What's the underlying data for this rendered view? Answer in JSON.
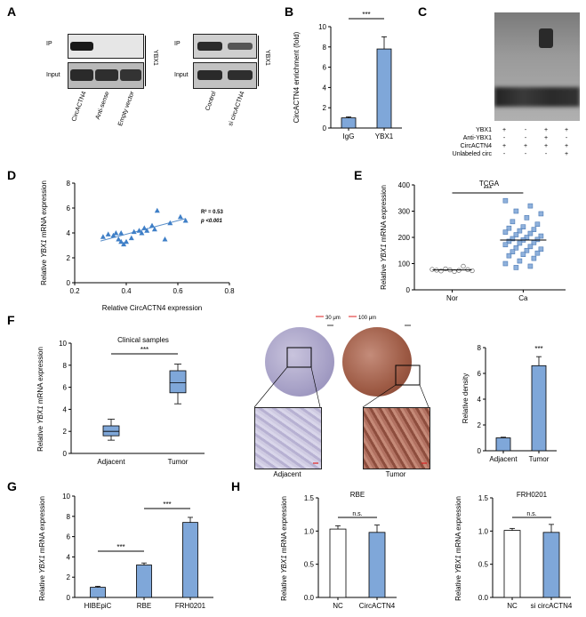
{
  "panels": {
    "A": {
      "label": "A",
      "blot1": {
        "row1": "IP",
        "row2": "Input",
        "side": "YBX1",
        "lanes": [
          "CircACTN4",
          "Anti-sense",
          "Empty vector"
        ]
      },
      "blot2": {
        "row1": "IP",
        "row2": "Input",
        "side": "YBX1",
        "lanes": [
          "Control",
          "si circACTN4"
        ]
      }
    },
    "B": {
      "label": "B",
      "ylabel": "CircACTN4 enrichment (fold)",
      "sig": "***",
      "colors": {
        "IgG": "#7fa7d9",
        "YBX1": "#7fa7d9"
      }
    },
    "C": {
      "label": "C",
      "rows": [
        "YBX1",
        "Anti-YBX1",
        "CircACTN4",
        "Unlabeled circ"
      ],
      "signs": [
        [
          "+",
          "-",
          "+",
          "+"
        ],
        [
          "-",
          "-",
          "+",
          "-"
        ],
        [
          "+",
          "+",
          "+",
          "+"
        ],
        [
          "-",
          "-",
          "-",
          "+"
        ]
      ]
    },
    "D": {
      "label": "D",
      "ylabel_pre": "Relative ",
      "ylabel_it": "YBX1",
      "ylabel_post": " mRNA expression",
      "xlabel": "Relative CircACTN4 expression",
      "r2": "R² = 0.53",
      "p": "p <0.001"
    },
    "E": {
      "label": "E",
      "title": "TCGA",
      "sig": "***",
      "ylabel_pre": "Relative ",
      "ylabel_it": "YBX1",
      "ylabel_post": " mRNA expression"
    },
    "F": {
      "label": "F",
      "title": "Clinical samples",
      "sig": "***",
      "ylabel_pre": "Relative ",
      "ylabel_it": "YBX1",
      "ylabel_post": " mRNA expression",
      "scale1": "30 μm",
      "scale2": "100 μm",
      "ihc_labels": [
        "Adjacent",
        "Tumor"
      ],
      "density_ylabel": "Relative density",
      "density_sig": "***"
    },
    "G": {
      "label": "G",
      "sig1": "***",
      "sig2": "***",
      "ylabel_pre": "Relative ",
      "ylabel_it": "YBX1",
      "ylabel_post": " mRNA expression"
    },
    "H": {
      "label": "H",
      "title1": "RBE",
      "title2": "FRH0201",
      "sig": "n.s.",
      "ylabel_pre": "Relative ",
      "ylabel_it": "YBX1",
      "ylabel_post": " mRNA expression"
    }
  },
  "chart_data": [
    {
      "id": "B",
      "type": "bar",
      "categories": [
        "IgG",
        "YBX1"
      ],
      "values": [
        1.0,
        7.8
      ],
      "errors": [
        0.1,
        1.2
      ],
      "ylim": [
        0,
        10
      ],
      "yticks": [
        0,
        2,
        4,
        6,
        8,
        10
      ],
      "ylabel": "CircACTN4 enrichment (fold)"
    },
    {
      "id": "D",
      "type": "scatter",
      "x": [
        0.31,
        0.33,
        0.35,
        0.36,
        0.37,
        0.38,
        0.38,
        0.39,
        0.4,
        0.42,
        0.43,
        0.45,
        0.46,
        0.47,
        0.48,
        0.5,
        0.51,
        0.52,
        0.55,
        0.57,
        0.61,
        0.63
      ],
      "y": [
        3.7,
        3.9,
        3.8,
        4.0,
        3.5,
        4.0,
        3.3,
        3.1,
        3.3,
        3.6,
        4.1,
        4.2,
        4.0,
        4.4,
        4.2,
        4.6,
        4.3,
        5.8,
        3.5,
        4.8,
        5.3,
        5.0
      ],
      "fit": {
        "x": [
          0.3,
          0.63
        ],
        "y": [
          3.35,
          5.15
        ]
      },
      "xlim": [
        0.2,
        0.8
      ],
      "ylim": [
        0,
        8
      ],
      "xticks": [
        0.2,
        0.4,
        0.6,
        0.8
      ],
      "yticks": [
        0,
        2,
        4,
        6,
        8
      ],
      "xlabel": "Relative CircACTN4 expression",
      "ylabel": "Relative YBX1 mRNA expression"
    },
    {
      "id": "E",
      "type": "scatter",
      "categories": [
        "Nor",
        "Ca"
      ],
      "nor": [
        78,
        75,
        72,
        80,
        76,
        70,
        74,
        90,
        77,
        73
      ],
      "ca": [
        340,
        320,
        300,
        290,
        275,
        260,
        250,
        240,
        235,
        230,
        225,
        220,
        215,
        210,
        205,
        200,
        195,
        192,
        190,
        185,
        180,
        178,
        172,
        165,
        160,
        155,
        150,
        145,
        140,
        135,
        130,
        120,
        110,
        100,
        90,
        85
      ],
      "means": [
        76,
        190
      ],
      "ylim": [
        0,
        400
      ],
      "yticks": [
        0,
        100,
        200,
        300,
        400
      ],
      "ylabel": "Relative YBX1 mRNA expression"
    },
    {
      "id": "F1",
      "type": "box",
      "categories": [
        "Adjacent",
        "Tumor"
      ],
      "boxes": [
        {
          "min": 1.2,
          "q1": 1.6,
          "median": 2.0,
          "q3": 2.5,
          "max": 3.1
        },
        {
          "min": 4.5,
          "q1": 5.5,
          "median": 6.4,
          "q3": 7.5,
          "max": 8.1
        }
      ],
      "ylim": [
        0,
        10
      ],
      "yticks": [
        0,
        2,
        4,
        6,
        8,
        10
      ],
      "ylabel": "Relative YBX1 mRNA expression"
    },
    {
      "id": "F2",
      "type": "bar",
      "categories": [
        "Adjacent",
        "Tumor"
      ],
      "values": [
        1.0,
        6.6
      ],
      "errors": [
        0.05,
        0.7
      ],
      "ylim": [
        0,
        8
      ],
      "yticks": [
        0,
        2,
        4,
        6,
        8
      ],
      "ylabel": "Relative density"
    },
    {
      "id": "G",
      "type": "bar",
      "categories": [
        "HIBEpiC",
        "RBE",
        "FRH0201"
      ],
      "values": [
        1.0,
        3.2,
        7.4
      ],
      "errors": [
        0.1,
        0.2,
        0.5
      ],
      "ylim": [
        0,
        10
      ],
      "yticks": [
        0,
        2,
        4,
        6,
        8,
        10
      ],
      "ylabel": "Relative YBX1 mRNA expression"
    },
    {
      "id": "H1",
      "type": "bar",
      "categories": [
        "NC",
        "CircACTN4"
      ],
      "values": [
        1.03,
        0.98
      ],
      "errors": [
        0.05,
        0.11
      ],
      "colors": [
        "#ffffff",
        "#7fa7d9"
      ],
      "ylim": [
        0,
        1.5
      ],
      "yticks": [
        0.0,
        0.5,
        1.0,
        1.5
      ],
      "ylabel": "Relative YBX1 mRNA expression",
      "title": "RBE"
    },
    {
      "id": "H2",
      "type": "bar",
      "categories": [
        "NC",
        "si circACTN4"
      ],
      "values": [
        1.01,
        0.98
      ],
      "errors": [
        0.03,
        0.12
      ],
      "colors": [
        "#ffffff",
        "#7fa7d9"
      ],
      "ylim": [
        0,
        1.5
      ],
      "yticks": [
        0.0,
        0.5,
        1.0,
        1.5
      ],
      "ylabel": "Relative YBX1 mRNA expression",
      "title": "FRH0201"
    }
  ]
}
